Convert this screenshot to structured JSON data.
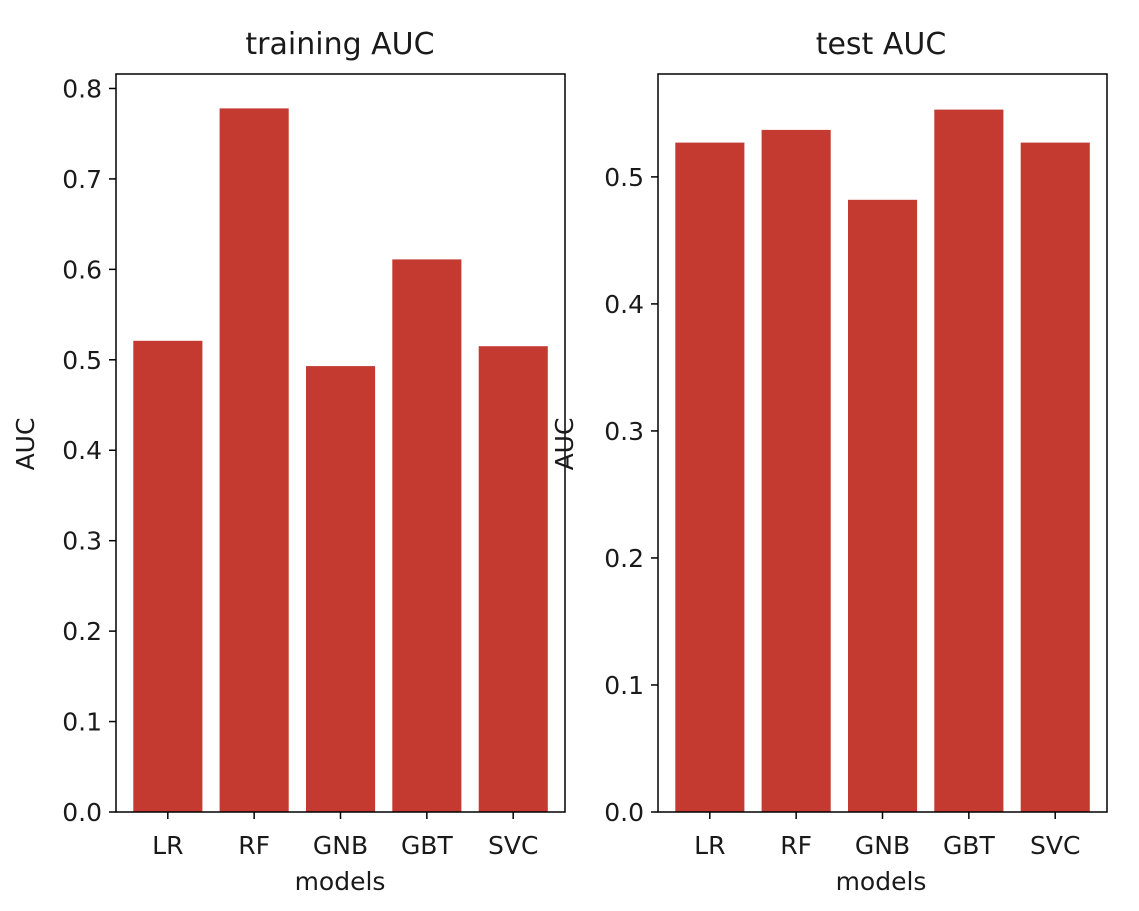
{
  "chart_data": [
    {
      "type": "bar",
      "title": "training AUC",
      "xlabel": "models",
      "ylabel": "AUC",
      "categories": [
        "LR",
        "RF",
        "GNB",
        "GBT",
        "SVC"
      ],
      "values": [
        0.521,
        0.778,
        0.493,
        0.611,
        0.515
      ],
      "ylim": [
        0,
        0.816
      ],
      "yticks": [
        "0.0",
        "0.1",
        "0.2",
        "0.3",
        "0.4",
        "0.5",
        "0.6",
        "0.7",
        "0.8"
      ],
      "grid": false,
      "bar_color": "#c43a31"
    },
    {
      "type": "bar",
      "title": "test AUC",
      "xlabel": "models",
      "ylabel": "AUC",
      "categories": [
        "LR",
        "RF",
        "GNB",
        "GBT",
        "SVC"
      ],
      "values": [
        0.527,
        0.537,
        0.482,
        0.553,
        0.527
      ],
      "ylim": [
        0,
        0.581
      ],
      "yticks": [
        "0.0",
        "0.1",
        "0.2",
        "0.3",
        "0.4",
        "0.5"
      ],
      "grid": false,
      "bar_color": "#c43a31"
    }
  ]
}
